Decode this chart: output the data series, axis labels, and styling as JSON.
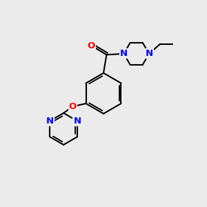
{
  "bg_color": "#ebebeb",
  "bond_color": "#000000",
  "N_color": "#0000ff",
  "O_color": "#ff0000",
  "bond_width": 1.5,
  "font_size_atom": 8.5,
  "fig_size": [
    3.0,
    3.0
  ],
  "dpi": 100,
  "xlim": [
    0,
    10
  ],
  "ylim": [
    0,
    10
  ]
}
